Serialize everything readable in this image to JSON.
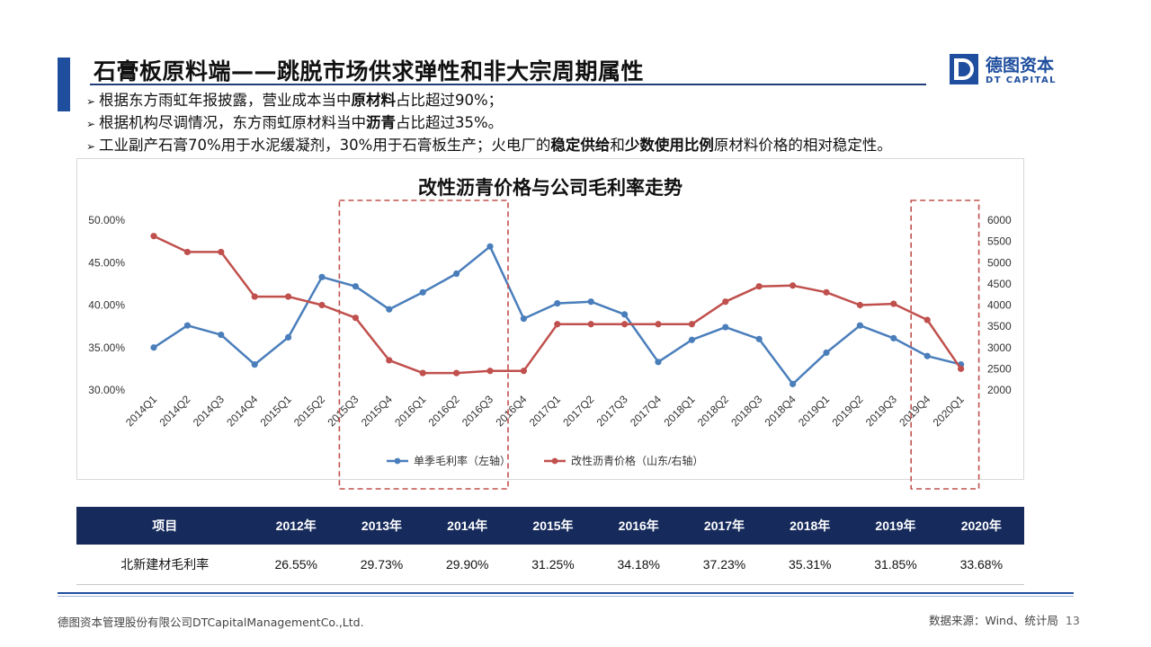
{
  "header": {
    "title": "石膏板原料端——跳脱市场供求弹性和非大宗周期属性",
    "logo_cn": "德图资本",
    "logo_en": "DT CAPITAL",
    "brand_color": "#1f4e9e"
  },
  "bullets": [
    {
      "parts": [
        {
          "t": "根据东方雨虹年报披露，营业成本当中"
        },
        {
          "t": "原材料",
          "b": true
        },
        {
          "t": "占比超过90%；"
        }
      ]
    },
    {
      "parts": [
        {
          "t": "根据机构尽调情况，东方雨虹原材料当中"
        },
        {
          "t": "沥青",
          "b": true
        },
        {
          "t": "占比超过35%。"
        }
      ]
    },
    {
      "parts": [
        {
          "t": "工业副产石膏70%用于水泥缓凝剂，30%用于石膏板生产；火电厂的"
        },
        {
          "t": "稳定供给",
          "b": true
        },
        {
          "t": "和"
        },
        {
          "t": "少数使用比例",
          "b": true
        },
        {
          "t": "原材料价格的相对稳定性。"
        }
      ]
    }
  ],
  "chart_data": {
    "type": "line",
    "title": "改性沥青价格与公司毛利率走势",
    "categories": [
      "2014Q1",
      "2014Q2",
      "2014Q3",
      "2014Q4",
      "2015Q1",
      "2015Q2",
      "2015Q3",
      "2015Q4",
      "2016Q1",
      "2016Q2",
      "2016Q3",
      "2016Q4",
      "2017Q1",
      "2017Q2",
      "2017Q3",
      "2017Q4",
      "2018Q1",
      "2018Q2",
      "2018Q3",
      "2018Q4",
      "2019Q1",
      "2019Q2",
      "2019Q3",
      "2019Q4",
      "2020Q1"
    ],
    "series": [
      {
        "name": "单季毛利率（左轴）",
        "axis": "left",
        "color": "#4a7ebb",
        "values": [
          35.0,
          37.6,
          36.5,
          33.0,
          36.2,
          43.3,
          42.2,
          39.5,
          41.5,
          43.7,
          46.9,
          38.4,
          40.2,
          40.4,
          38.9,
          33.3,
          35.9,
          37.4,
          36.0,
          30.7,
          34.4,
          37.6,
          36.1,
          34.0,
          33.0
        ]
      },
      {
        "name": "改性沥青价格（山东/右轴）",
        "axis": "right",
        "color": "#c0504d",
        "values": [
          5625,
          5250,
          5250,
          4200,
          4200,
          4000,
          3700,
          2700,
          2400,
          2400,
          2450,
          2450,
          3550,
          3550,
          3550,
          3550,
          3550,
          4080,
          4440,
          4460,
          4300,
          4000,
          4030,
          3650,
          2500
        ]
      }
    ],
    "y_left": {
      "min": 30,
      "max": 50,
      "step": 5,
      "ticks": [
        "30.00%",
        "35.00%",
        "40.00%",
        "45.00%",
        "50.00%"
      ]
    },
    "y_right": {
      "min": 2000,
      "max": 6000,
      "step": 500,
      "ticks": [
        "2000",
        "2500",
        "3000",
        "3500",
        "4000",
        "4500",
        "5000",
        "5500",
        "6000"
      ]
    },
    "grid": false,
    "legend_position": "bottom",
    "highlights": [
      {
        "from": "2015Q3",
        "to": "2016Q3",
        "color": "#c0504d"
      },
      {
        "from": "2019Q4",
        "to": "2020Q1",
        "color": "#c0504d"
      }
    ]
  },
  "table": {
    "headers": [
      "项目",
      "2012年",
      "2013年",
      "2014年",
      "2015年",
      "2016年",
      "2017年",
      "2018年",
      "2019年",
      "2020年"
    ],
    "rows": [
      [
        "北新建材毛利率",
        "26.55%",
        "29.73%",
        "29.90%",
        "31.25%",
        "34.18%",
        "37.23%",
        "35.31%",
        "31.85%",
        "33.68%"
      ]
    ]
  },
  "footer": {
    "company": "德图资本管理股份有限公司DTCapitalManagementCo.,Ltd.",
    "source": "数据来源：Wind、统计局",
    "page": "13"
  }
}
